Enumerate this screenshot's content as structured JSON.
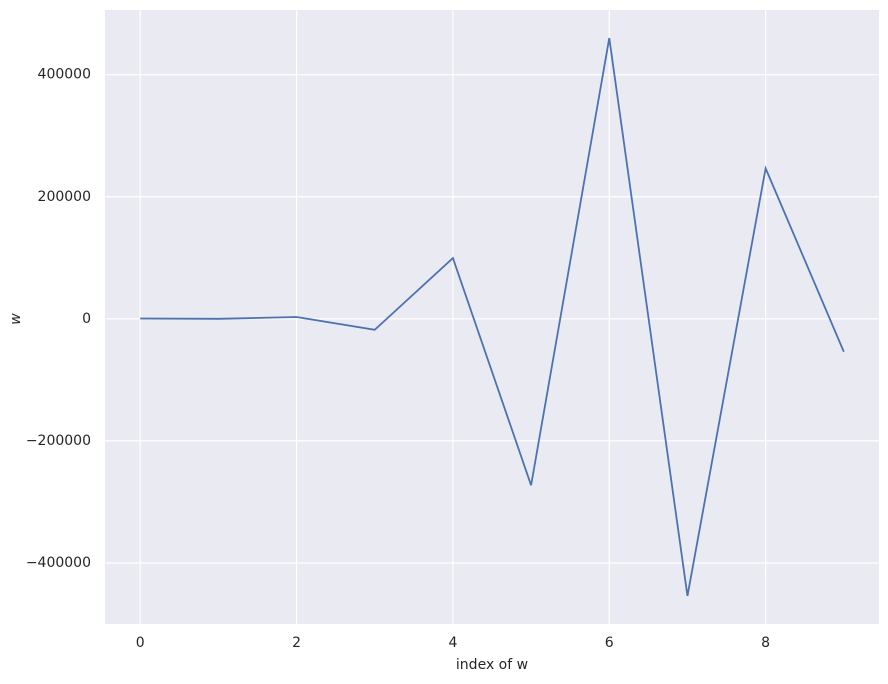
{
  "chart_data": {
    "type": "line",
    "x_label": "index of w",
    "y_label": "w",
    "x": [
      0,
      1,
      2,
      3,
      4,
      5,
      6,
      7,
      8,
      9
    ],
    "series": [
      {
        "color": "#4c72b0",
        "values": [
          500,
          0,
          3000,
          -18000,
          99600,
          -272700,
          460000,
          -454000,
          246500,
          -53900
        ]
      }
    ],
    "xlim": [
      -0.45,
      9.45
    ],
    "xticks": [
      0,
      2,
      4,
      6,
      8
    ],
    "ylim": [
      -500000,
      506000
    ],
    "yticks": [
      {
        "value": -400000,
        "label": "−400000"
      },
      {
        "value": -200000,
        "label": "−200000"
      },
      0,
      200000,
      400000
    ],
    "grid": true,
    "background": "#eaeaf2"
  }
}
